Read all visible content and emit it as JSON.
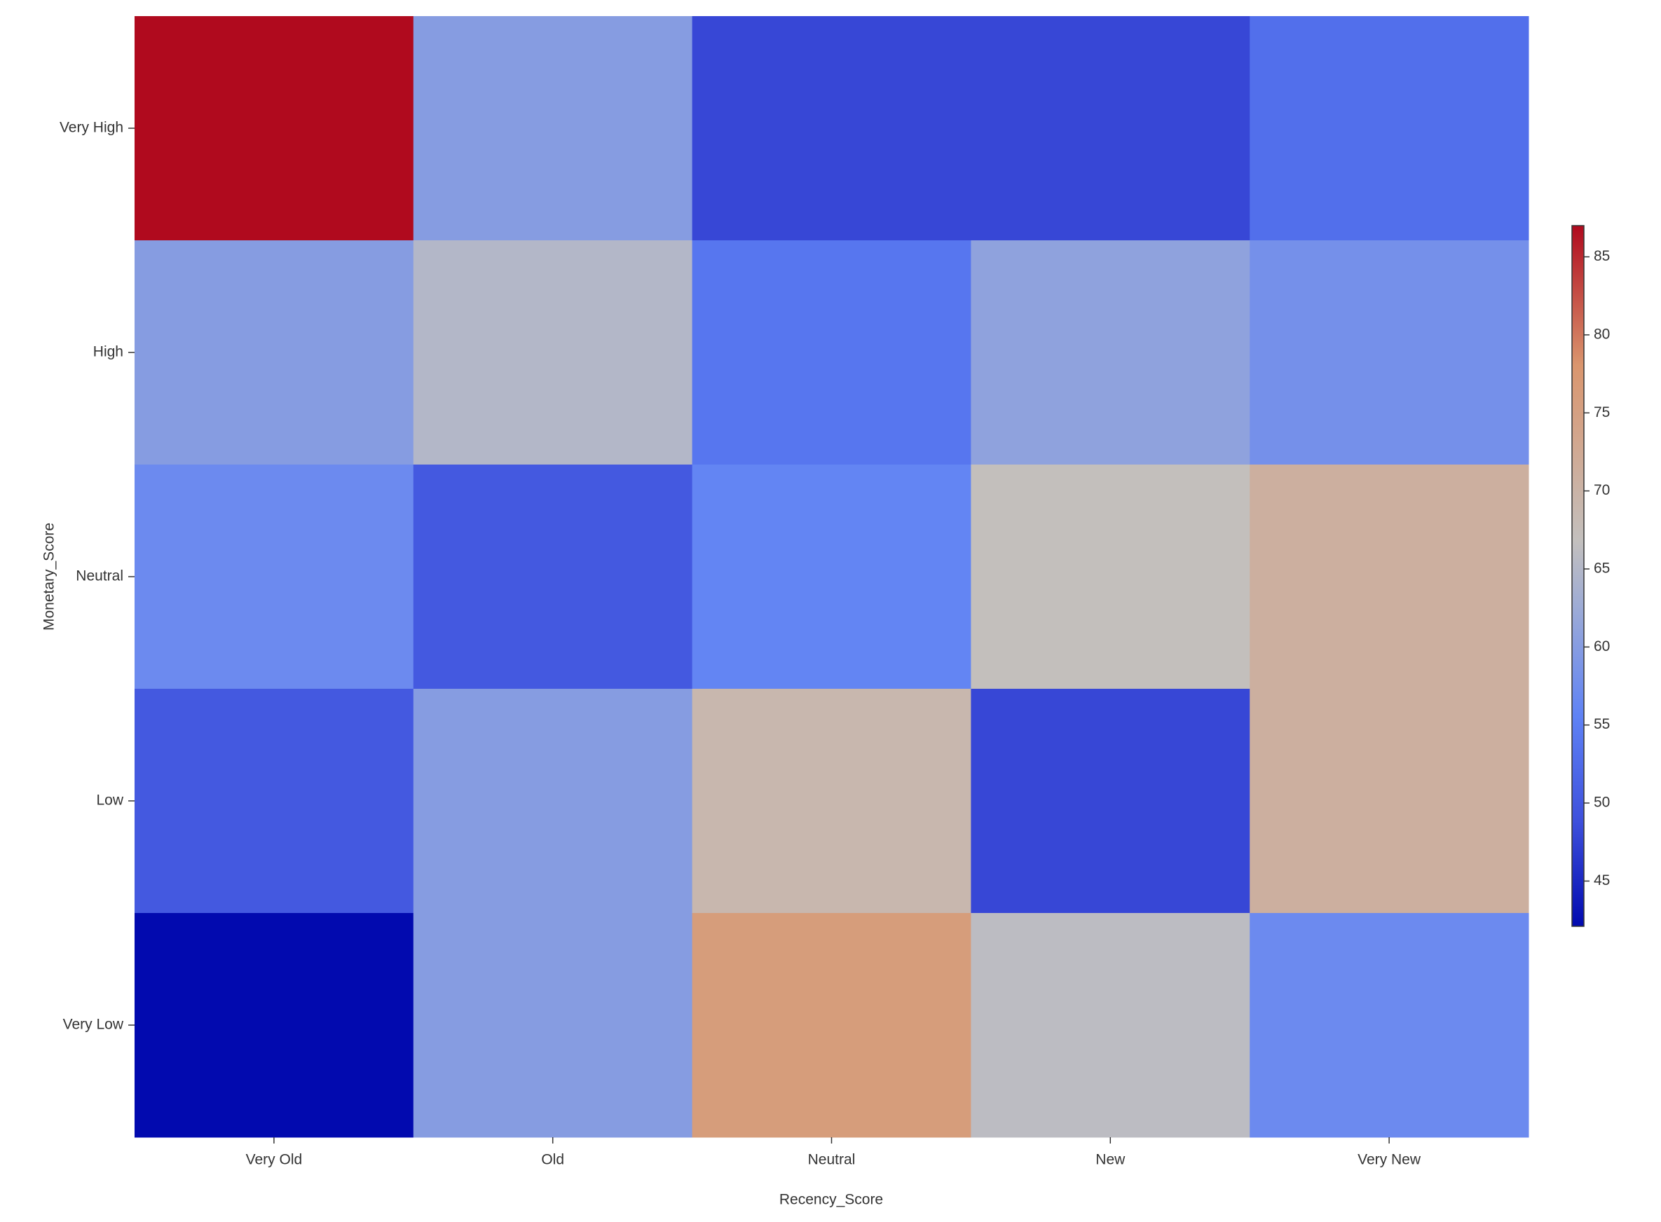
{
  "chart_data": {
    "type": "heatmap",
    "x_label": "Recency_Score",
    "y_label": "Monetary_Score",
    "x_categories": [
      "Very Old",
      "Old",
      "Neutral",
      "New",
      "Very New"
    ],
    "y_categories": [
      "Very High",
      "High",
      "Neutral",
      "Low",
      "Very Low"
    ],
    "values": [
      [
        87,
        60,
        48,
        48,
        53
      ],
      [
        60,
        65,
        54,
        61,
        58
      ],
      [
        57,
        50,
        56,
        67,
        71
      ],
      [
        50,
        60,
        69,
        48,
        71
      ],
      [
        42.1,
        60,
        76,
        66,
        57
      ]
    ],
    "colormap": "coolwarm",
    "clim": [
      42.1,
      87
    ],
    "colorbar_ticks": [
      45,
      50,
      55,
      60,
      65,
      70,
      75,
      80,
      85
    ]
  }
}
